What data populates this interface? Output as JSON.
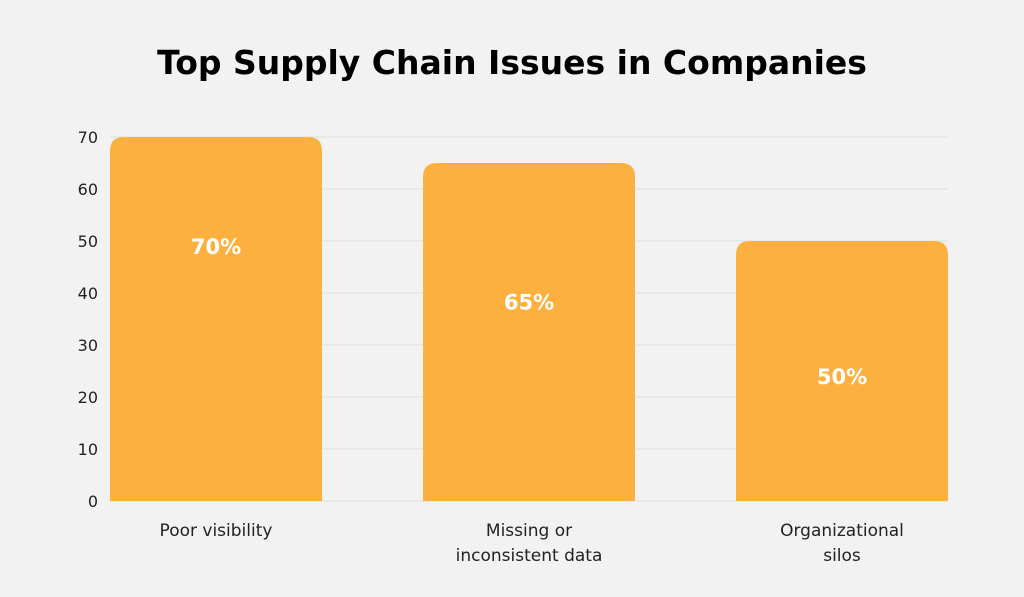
{
  "chart_data": {
    "type": "bar",
    "title": "Top Supply Chain Issues in Companies",
    "xlabel": "",
    "ylabel": "",
    "categories": [
      [
        "Poor visibility"
      ],
      [
        "Missing or",
        "inconsistent data"
      ],
      [
        "Organizational",
        "silos"
      ]
    ],
    "values": [
      70,
      65,
      50
    ],
    "data_labels": [
      "70%",
      "65%",
      "50%"
    ],
    "yticks": [
      0,
      10,
      20,
      30,
      40,
      50,
      60,
      70
    ],
    "ylim": [
      0,
      70
    ],
    "grid": true,
    "legend": "none",
    "colors": {
      "bar": "#FBB040",
      "background": "#F2F2F2",
      "grid": "#DDDDDD"
    }
  }
}
